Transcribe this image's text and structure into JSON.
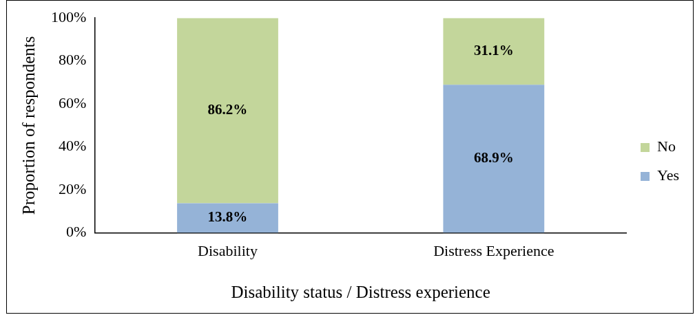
{
  "chart_data": {
    "type": "bar",
    "stacked": true,
    "xlabel": "Disability status / Distress experience",
    "ylabel": "Proportion of respondents",
    "categories": [
      "Disability",
      "Distress Experience"
    ],
    "series": [
      {
        "name": "Yes",
        "color": "#95b3d7",
        "values": [
          13.8,
          68.9
        ],
        "value_labels": [
          "13.8%",
          "68.9%"
        ]
      },
      {
        "name": "No",
        "color": "#c3d69b",
        "values": [
          86.2,
          31.1
        ],
        "value_labels": [
          "86.2%",
          "31.1%"
        ]
      }
    ],
    "ylim": [
      0,
      100
    ],
    "yticks": [
      {
        "value": 0,
        "label": "0%"
      },
      {
        "value": 20,
        "label": "20%"
      },
      {
        "value": 40,
        "label": "40%"
      },
      {
        "value": 60,
        "label": "60%"
      },
      {
        "value": 80,
        "label": "80%"
      },
      {
        "value": 100,
        "label": "100%"
      }
    ],
    "grid": false,
    "legend": "right"
  }
}
